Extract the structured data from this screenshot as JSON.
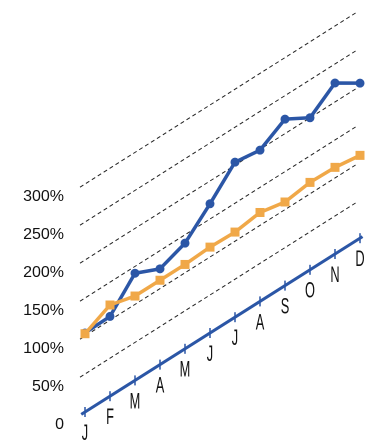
{
  "chart_data": {
    "type": "line",
    "categories": [
      "J",
      "F",
      "M",
      "A",
      "M",
      "J",
      "J",
      "A",
      "S",
      "O",
      "N",
      "D"
    ],
    "series": [
      {
        "color": "#2b56a6",
        "marker": "circle",
        "values": [
          104,
          105,
          141,
          126,
          139,
          170,
          204,
          199,
          219,
          200,
          225,
          204
        ]
      },
      {
        "color": "#f0a848",
        "marker": "square",
        "values": [
          103,
          120,
          111,
          111,
          111,
          113,
          112,
          117,
          110,
          115,
          114,
          109
        ]
      }
    ],
    "ylim": [
      0,
      300
    ],
    "yticks": [
      0,
      {
        "value": 50,
        "label": "50%"
      },
      {
        "value": 100,
        "label": "100%"
      },
      {
        "value": 150,
        "label": "150%"
      },
      {
        "value": 200,
        "label": "200%"
      },
      {
        "value": 250,
        "label": "250%"
      },
      {
        "value": 300,
        "label": "300%"
      }
    ],
    "grid": true,
    "axis_color": "#2b56a6"
  }
}
